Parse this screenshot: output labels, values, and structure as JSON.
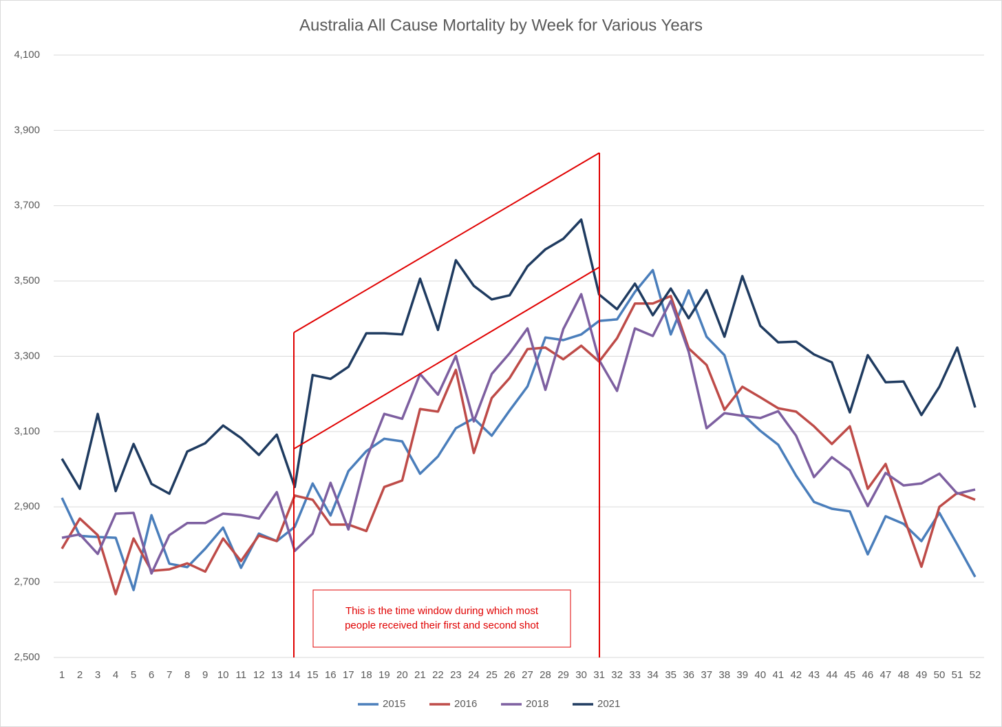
{
  "chart_data": {
    "type": "line",
    "title": "Australia All Cause Mortality by Week for Various Years",
    "categories": [
      1,
      2,
      3,
      4,
      5,
      6,
      7,
      8,
      9,
      10,
      11,
      12,
      13,
      14,
      15,
      16,
      17,
      18,
      19,
      20,
      21,
      22,
      23,
      24,
      25,
      26,
      27,
      28,
      29,
      30,
      31,
      32,
      33,
      34,
      35,
      36,
      37,
      38,
      39,
      40,
      41,
      42,
      43,
      44,
      45,
      46,
      47,
      48,
      49,
      50,
      51,
      52
    ],
    "ylim": [
      2500,
      4100
    ],
    "yticks": [
      {
        "value": 2500,
        "label": "2,500"
      },
      {
        "value": 2700,
        "label": "2,700"
      },
      {
        "value": 2900,
        "label": "2,900"
      },
      {
        "value": 3100,
        "label": "3,100"
      },
      {
        "value": 3300,
        "label": "3,300"
      },
      {
        "value": 3500,
        "label": "3,500"
      },
      {
        "value": 3700,
        "label": "3,700"
      },
      {
        "value": 3900,
        "label": "3,900"
      },
      {
        "value": 4100,
        "label": "4,100"
      }
    ],
    "grid": true,
    "legend": "bottom",
    "annotation": [
      "This is the time window during which most",
      "people received their first and second shot"
    ],
    "series": [
      {
        "name": "2015",
        "color": "#4a7ebb",
        "values": [
          2924,
          2823,
          2820,
          2818,
          2679,
          2878,
          2749,
          2740,
          2789,
          2845,
          2738,
          2829,
          2809,
          2847,
          2962,
          2877,
          2995,
          3048,
          3081,
          3074,
          2988,
          3034,
          3109,
          3135,
          3089,
          3156,
          3220,
          3350,
          3343,
          3358,
          3394,
          3398,
          3471,
          3529,
          3358,
          3475,
          3352,
          3303,
          3147,
          3102,
          3065,
          2983,
          2913,
          2895,
          2888,
          2774,
          2875,
          2855,
          2809,
          2884,
          2800,
          2714
        ]
      },
      {
        "name": "2016",
        "color": "#be4b48",
        "values": [
          2789,
          2869,
          2825,
          2668,
          2816,
          2730,
          2734,
          2750,
          2728,
          2816,
          2756,
          2824,
          2809,
          2930,
          2919,
          2853,
          2853,
          2836,
          2953,
          2970,
          3160,
          3153,
          3264,
          3043,
          3189,
          3242,
          3319,
          3323,
          3292,
          3328,
          3286,
          3348,
          3440,
          3440,
          3460,
          3321,
          3277,
          3158,
          3219,
          3191,
          3162,
          3153,
          3114,
          3067,
          3114,
          2948,
          3014,
          2875,
          2741,
          2900,
          2937,
          2919
        ]
      },
      {
        "name": "2018",
        "color": "#7d5fa0",
        "values": [
          2818,
          2827,
          2775,
          2882,
          2884,
          2723,
          2825,
          2857,
          2857,
          2882,
          2878,
          2869,
          2939,
          2783,
          2829,
          2964,
          2840,
          3027,
          3147,
          3134,
          3253,
          3198,
          3301,
          3127,
          3253,
          3308,
          3374,
          3211,
          3372,
          3465,
          3290,
          3208,
          3374,
          3354,
          3447,
          3312,
          3109,
          3149,
          3142,
          3136,
          3154,
          3089,
          2979,
          3032,
          2997,
          2902,
          2990,
          2957,
          2962,
          2988,
          2935,
          2946
        ]
      },
      {
        "name": "2021",
        "color": "#1f3b60",
        "values": [
          3028,
          2948,
          3147,
          2942,
          3067,
          2961,
          2935,
          3047,
          3069,
          3116,
          3083,
          3038,
          3092,
          2953,
          3250,
          3240,
          3272,
          3361,
          3361,
          3358,
          3506,
          3370,
          3555,
          3487,
          3451,
          3462,
          3539,
          3584,
          3612,
          3663,
          3464,
          3425,
          3493,
          3409,
          3480,
          3401,
          3476,
          3352,
          3513,
          3381,
          3337,
          3339,
          3305,
          3284,
          3151,
          3303,
          3231,
          3233,
          3144,
          3219,
          3323,
          3164
        ]
      }
    ]
  }
}
